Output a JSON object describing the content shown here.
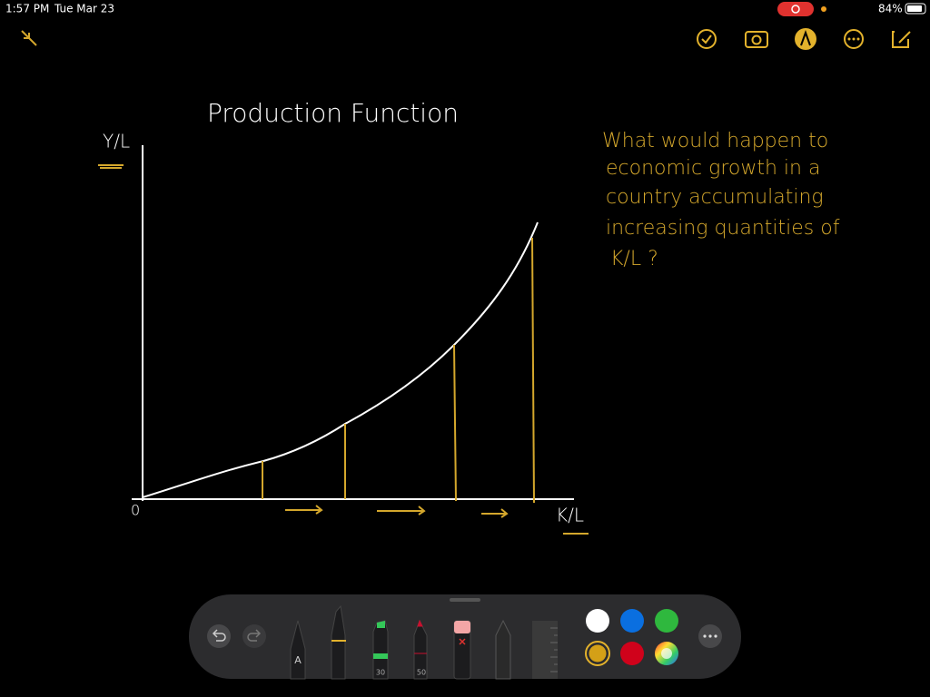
{
  "status_bar": {
    "time": "1:57 PM",
    "date": "Tue Mar 23",
    "battery": "84%"
  },
  "note": {
    "title": "Production Function",
    "y_axis_label": "Y/L",
    "x_axis_label": "K/L",
    "origin_label": "0",
    "question_lines": [
      "What would happen to",
      "economic growth in a",
      "country accumulating",
      "increasing quantities of",
      "K/L ?"
    ]
  },
  "toolbar": {
    "pen_label": "A",
    "marker_size": "30",
    "pencil_size": "50"
  }
}
